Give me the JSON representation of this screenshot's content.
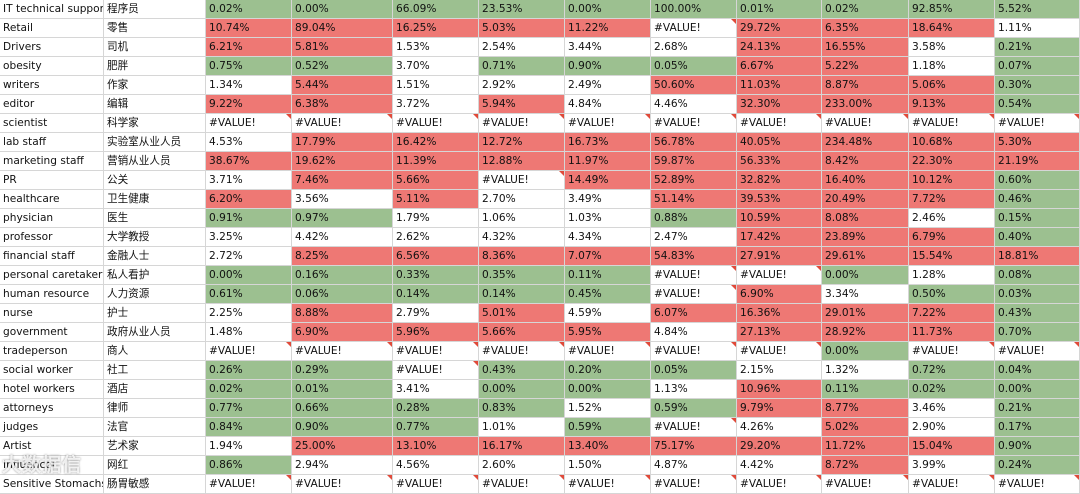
{
  "rows": [
    {
      "en": "IT technical support",
      "zh": "程序员",
      "cells": [
        {
          "v": "0.02%",
          "t": "g"
        },
        {
          "v": "0.00%",
          "t": "g"
        },
        {
          "v": "66.09%",
          "t": "g"
        },
        {
          "v": "23.53%",
          "t": "g"
        },
        {
          "v": "0.00%",
          "t": "g"
        },
        {
          "v": "100.00%",
          "t": "g"
        },
        {
          "v": "0.01%",
          "t": "g"
        },
        {
          "v": "0.02%",
          "t": "g"
        },
        {
          "v": "92.85%",
          "t": "g"
        },
        {
          "v": "5.52%",
          "t": "g"
        }
      ]
    },
    {
      "en": "Retail",
      "zh": "零售",
      "cells": [
        {
          "v": "10.74%",
          "t": "r"
        },
        {
          "v": "89.04%",
          "t": "r"
        },
        {
          "v": "16.25%",
          "t": "r"
        },
        {
          "v": "5.03%",
          "t": "r"
        },
        {
          "v": "11.22%",
          "t": "r"
        },
        {
          "v": "#VALUE!",
          "t": "w",
          "f": true
        },
        {
          "v": "29.72%",
          "t": "r"
        },
        {
          "v": "6.35%",
          "t": "r"
        },
        {
          "v": "18.64%",
          "t": "r"
        },
        {
          "v": "1.11%",
          "t": "w"
        }
      ]
    },
    {
      "en": "Drivers",
      "zh": "司机",
      "cells": [
        {
          "v": "6.21%",
          "t": "r"
        },
        {
          "v": "5.81%",
          "t": "r"
        },
        {
          "v": "1.53%",
          "t": "w"
        },
        {
          "v": "2.54%",
          "t": "w"
        },
        {
          "v": "3.44%",
          "t": "w"
        },
        {
          "v": "2.68%",
          "t": "w"
        },
        {
          "v": "24.13%",
          "t": "r"
        },
        {
          "v": "16.55%",
          "t": "r"
        },
        {
          "v": "3.58%",
          "t": "w"
        },
        {
          "v": "0.21%",
          "t": "g"
        }
      ]
    },
    {
      "en": "obesity",
      "zh": "肥胖",
      "cells": [
        {
          "v": "0.75%",
          "t": "g"
        },
        {
          "v": "0.52%",
          "t": "g"
        },
        {
          "v": "3.70%",
          "t": "w"
        },
        {
          "v": "0.71%",
          "t": "g"
        },
        {
          "v": "0.90%",
          "t": "g"
        },
        {
          "v": "0.05%",
          "t": "g"
        },
        {
          "v": "6.67%",
          "t": "r"
        },
        {
          "v": "5.22%",
          "t": "r"
        },
        {
          "v": "1.18%",
          "t": "w"
        },
        {
          "v": "0.07%",
          "t": "g"
        }
      ]
    },
    {
      "en": "writers",
      "zh": "作家",
      "cells": [
        {
          "v": "1.34%",
          "t": "w"
        },
        {
          "v": "5.44%",
          "t": "r"
        },
        {
          "v": "1.51%",
          "t": "w"
        },
        {
          "v": "2.92%",
          "t": "w"
        },
        {
          "v": "2.49%",
          "t": "w"
        },
        {
          "v": "50.60%",
          "t": "r"
        },
        {
          "v": "11.03%",
          "t": "r"
        },
        {
          "v": "8.87%",
          "t": "r"
        },
        {
          "v": "5.06%",
          "t": "r"
        },
        {
          "v": "0.30%",
          "t": "g"
        }
      ]
    },
    {
      "en": "editor",
      "zh": "编辑",
      "cells": [
        {
          "v": "9.22%",
          "t": "r"
        },
        {
          "v": "6.38%",
          "t": "r"
        },
        {
          "v": "3.72%",
          "t": "w"
        },
        {
          "v": "5.94%",
          "t": "r"
        },
        {
          "v": "4.84%",
          "t": "w"
        },
        {
          "v": "4.46%",
          "t": "w"
        },
        {
          "v": "32.30%",
          "t": "r"
        },
        {
          "v": "233.00%",
          "t": "r"
        },
        {
          "v": "9.13%",
          "t": "r"
        },
        {
          "v": "0.54%",
          "t": "g"
        }
      ]
    },
    {
      "en": "scientist",
      "zh": "科学家",
      "cells": [
        {
          "v": "#VALUE!",
          "t": "w",
          "f": true
        },
        {
          "v": "#VALUE!",
          "t": "w",
          "f": true
        },
        {
          "v": "#VALUE!",
          "t": "w",
          "f": true
        },
        {
          "v": "#VALUE!",
          "t": "w",
          "f": true
        },
        {
          "v": "#VALUE!",
          "t": "w",
          "f": true
        },
        {
          "v": "#VALUE!",
          "t": "w",
          "f": true
        },
        {
          "v": "#VALUE!",
          "t": "w",
          "f": true
        },
        {
          "v": "#VALUE!",
          "t": "w",
          "f": true
        },
        {
          "v": "#VALUE!",
          "t": "w",
          "f": true
        },
        {
          "v": "#VALUE!",
          "t": "w",
          "f": true
        }
      ]
    },
    {
      "en": "lab staff",
      "zh": "实验室从业人员",
      "cells": [
        {
          "v": "4.53%",
          "t": "w"
        },
        {
          "v": "17.79%",
          "t": "r"
        },
        {
          "v": "16.42%",
          "t": "r"
        },
        {
          "v": "12.72%",
          "t": "r"
        },
        {
          "v": "16.73%",
          "t": "r"
        },
        {
          "v": "56.78%",
          "t": "r"
        },
        {
          "v": "40.05%",
          "t": "r"
        },
        {
          "v": "234.48%",
          "t": "r"
        },
        {
          "v": "10.68%",
          "t": "r"
        },
        {
          "v": "5.30%",
          "t": "r"
        }
      ]
    },
    {
      "en": "marketing staff",
      "zh": "营销从业人员",
      "cells": [
        {
          "v": "38.67%",
          "t": "r"
        },
        {
          "v": "19.62%",
          "t": "r"
        },
        {
          "v": "11.39%",
          "t": "r"
        },
        {
          "v": "12.88%",
          "t": "r"
        },
        {
          "v": "11.97%",
          "t": "r"
        },
        {
          "v": "59.87%",
          "t": "r"
        },
        {
          "v": "56.33%",
          "t": "r"
        },
        {
          "v": "8.42%",
          "t": "r"
        },
        {
          "v": "22.30%",
          "t": "r"
        },
        {
          "v": "21.19%",
          "t": "r"
        }
      ]
    },
    {
      "en": "PR",
      "zh": "公关",
      "cells": [
        {
          "v": "3.71%",
          "t": "w"
        },
        {
          "v": "7.46%",
          "t": "r"
        },
        {
          "v": "5.66%",
          "t": "r"
        },
        {
          "v": "#VALUE!",
          "t": "w",
          "f": true
        },
        {
          "v": "14.49%",
          "t": "r"
        },
        {
          "v": "52.89%",
          "t": "r"
        },
        {
          "v": "32.82%",
          "t": "r"
        },
        {
          "v": "16.40%",
          "t": "r"
        },
        {
          "v": "10.12%",
          "t": "r"
        },
        {
          "v": "0.60%",
          "t": "g"
        }
      ]
    },
    {
      "en": "healthcare",
      "zh": "卫生健康",
      "cells": [
        {
          "v": "6.20%",
          "t": "r"
        },
        {
          "v": "3.56%",
          "t": "w"
        },
        {
          "v": "5.11%",
          "t": "r"
        },
        {
          "v": "2.70%",
          "t": "w"
        },
        {
          "v": "3.49%",
          "t": "w"
        },
        {
          "v": "51.14%",
          "t": "r"
        },
        {
          "v": "39.53%",
          "t": "r"
        },
        {
          "v": "20.49%",
          "t": "r"
        },
        {
          "v": "7.72%",
          "t": "r"
        },
        {
          "v": "0.46%",
          "t": "g"
        }
      ]
    },
    {
      "en": "physician",
      "zh": "医生",
      "cells": [
        {
          "v": "0.91%",
          "t": "g"
        },
        {
          "v": "0.97%",
          "t": "g"
        },
        {
          "v": "1.79%",
          "t": "w"
        },
        {
          "v": "1.06%",
          "t": "w"
        },
        {
          "v": "1.03%",
          "t": "w"
        },
        {
          "v": "0.88%",
          "t": "g"
        },
        {
          "v": "10.59%",
          "t": "r"
        },
        {
          "v": "8.08%",
          "t": "r"
        },
        {
          "v": "2.46%",
          "t": "w"
        },
        {
          "v": "0.15%",
          "t": "g"
        }
      ]
    },
    {
      "en": "professor",
      "zh": "大学教授",
      "cells": [
        {
          "v": "3.25%",
          "t": "w"
        },
        {
          "v": "4.42%",
          "t": "w"
        },
        {
          "v": "2.62%",
          "t": "w"
        },
        {
          "v": "4.32%",
          "t": "w"
        },
        {
          "v": "4.34%",
          "t": "w"
        },
        {
          "v": "2.47%",
          "t": "w"
        },
        {
          "v": "17.42%",
          "t": "r"
        },
        {
          "v": "23.89%",
          "t": "r"
        },
        {
          "v": "6.79%",
          "t": "r"
        },
        {
          "v": "0.40%",
          "t": "g"
        }
      ]
    },
    {
      "en": "financial staff",
      "zh": "金融人士",
      "cells": [
        {
          "v": "2.72%",
          "t": "w"
        },
        {
          "v": "8.25%",
          "t": "r"
        },
        {
          "v": "6.56%",
          "t": "r"
        },
        {
          "v": "8.36%",
          "t": "r"
        },
        {
          "v": "7.07%",
          "t": "r"
        },
        {
          "v": "54.83%",
          "t": "r"
        },
        {
          "v": "27.91%",
          "t": "r"
        },
        {
          "v": "29.61%",
          "t": "r"
        },
        {
          "v": "15.54%",
          "t": "r"
        },
        {
          "v": "18.81%",
          "t": "r"
        }
      ]
    },
    {
      "en": "personal caretaker",
      "zh": "私人看护",
      "cells": [
        {
          "v": "0.00%",
          "t": "g"
        },
        {
          "v": "0.16%",
          "t": "g"
        },
        {
          "v": "0.33%",
          "t": "g"
        },
        {
          "v": "0.35%",
          "t": "g"
        },
        {
          "v": "0.11%",
          "t": "g"
        },
        {
          "v": "#VALUE!",
          "t": "w",
          "f": true
        },
        {
          "v": "#VALUE!",
          "t": "w",
          "f": true
        },
        {
          "v": "0.00%",
          "t": "g"
        },
        {
          "v": "1.28%",
          "t": "w"
        },
        {
          "v": "0.08%",
          "t": "g"
        }
      ]
    },
    {
      "en": "human resource",
      "zh": "人力资源",
      "cells": [
        {
          "v": "0.61%",
          "t": "g"
        },
        {
          "v": "0.06%",
          "t": "g"
        },
        {
          "v": "0.14%",
          "t": "g"
        },
        {
          "v": "0.14%",
          "t": "g"
        },
        {
          "v": "0.45%",
          "t": "g"
        },
        {
          "v": "#VALUE!",
          "t": "w",
          "f": true
        },
        {
          "v": "6.90%",
          "t": "r"
        },
        {
          "v": "3.34%",
          "t": "w"
        },
        {
          "v": "0.50%",
          "t": "g"
        },
        {
          "v": "0.03%",
          "t": "g"
        }
      ]
    },
    {
      "en": "nurse",
      "zh": "护士",
      "cells": [
        {
          "v": "2.25%",
          "t": "w"
        },
        {
          "v": "8.88%",
          "t": "r"
        },
        {
          "v": "2.79%",
          "t": "w"
        },
        {
          "v": "5.01%",
          "t": "r"
        },
        {
          "v": "4.59%",
          "t": "w"
        },
        {
          "v": "6.07%",
          "t": "r"
        },
        {
          "v": "16.36%",
          "t": "r"
        },
        {
          "v": "29.01%",
          "t": "r"
        },
        {
          "v": "7.22%",
          "t": "r"
        },
        {
          "v": "0.43%",
          "t": "g"
        }
      ]
    },
    {
      "en": "government",
      "zh": "政府从业人员",
      "cells": [
        {
          "v": "1.48%",
          "t": "w"
        },
        {
          "v": "6.90%",
          "t": "r"
        },
        {
          "v": "5.96%",
          "t": "r"
        },
        {
          "v": "5.66%",
          "t": "r"
        },
        {
          "v": "5.95%",
          "t": "r"
        },
        {
          "v": "4.84%",
          "t": "w"
        },
        {
          "v": "27.13%",
          "t": "r"
        },
        {
          "v": "28.92%",
          "t": "r"
        },
        {
          "v": "11.73%",
          "t": "r"
        },
        {
          "v": "0.70%",
          "t": "g"
        }
      ]
    },
    {
      "en": "tradeperson",
      "zh": "商人",
      "cells": [
        {
          "v": "#VALUE!",
          "t": "w",
          "f": true
        },
        {
          "v": "#VALUE!",
          "t": "w",
          "f": true
        },
        {
          "v": "#VALUE!",
          "t": "w",
          "f": true
        },
        {
          "v": "#VALUE!",
          "t": "w",
          "f": true
        },
        {
          "v": "#VALUE!",
          "t": "w",
          "f": true
        },
        {
          "v": "#VALUE!",
          "t": "w",
          "f": true
        },
        {
          "v": "#VALUE!",
          "t": "w",
          "f": true
        },
        {
          "v": "0.00%",
          "t": "g"
        },
        {
          "v": "#VALUE!",
          "t": "w",
          "f": true
        },
        {
          "v": "#VALUE!",
          "t": "w",
          "f": true
        }
      ]
    },
    {
      "en": "social worker",
      "zh": "社工",
      "cells": [
        {
          "v": "0.26%",
          "t": "g"
        },
        {
          "v": "0.29%",
          "t": "g"
        },
        {
          "v": "#VALUE!",
          "t": "w",
          "f": true
        },
        {
          "v": "0.43%",
          "t": "g"
        },
        {
          "v": "0.20%",
          "t": "g"
        },
        {
          "v": "0.05%",
          "t": "g"
        },
        {
          "v": "2.15%",
          "t": "w"
        },
        {
          "v": "1.32%",
          "t": "w"
        },
        {
          "v": "0.72%",
          "t": "g"
        },
        {
          "v": "0.04%",
          "t": "g"
        }
      ]
    },
    {
      "en": "hotel workers",
      "zh": "酒店",
      "cells": [
        {
          "v": "0.02%",
          "t": "g"
        },
        {
          "v": "0.01%",
          "t": "g"
        },
        {
          "v": "3.41%",
          "t": "w"
        },
        {
          "v": "0.00%",
          "t": "g"
        },
        {
          "v": "0.00%",
          "t": "g"
        },
        {
          "v": "1.13%",
          "t": "w"
        },
        {
          "v": "10.96%",
          "t": "r"
        },
        {
          "v": "0.11%",
          "t": "g"
        },
        {
          "v": "0.02%",
          "t": "g"
        },
        {
          "v": "0.00%",
          "t": "g"
        }
      ]
    },
    {
      "en": "attorneys",
      "zh": "律师",
      "cells": [
        {
          "v": "0.77%",
          "t": "g"
        },
        {
          "v": "0.66%",
          "t": "g"
        },
        {
          "v": "0.28%",
          "t": "g"
        },
        {
          "v": "0.83%",
          "t": "g"
        },
        {
          "v": "1.52%",
          "t": "w"
        },
        {
          "v": "0.59%",
          "t": "g"
        },
        {
          "v": "9.79%",
          "t": "r"
        },
        {
          "v": "8.77%",
          "t": "r"
        },
        {
          "v": "3.46%",
          "t": "w"
        },
        {
          "v": "0.21%",
          "t": "g"
        }
      ]
    },
    {
      "en": "judges",
      "zh": "法官",
      "cells": [
        {
          "v": "0.84%",
          "t": "g"
        },
        {
          "v": "0.90%",
          "t": "g"
        },
        {
          "v": "0.77%",
          "t": "g"
        },
        {
          "v": "1.01%",
          "t": "w"
        },
        {
          "v": "0.59%",
          "t": "g"
        },
        {
          "v": "#VALUE!",
          "t": "w",
          "f": true
        },
        {
          "v": "4.26%",
          "t": "w"
        },
        {
          "v": "5.02%",
          "t": "r"
        },
        {
          "v": "2.90%",
          "t": "w"
        },
        {
          "v": "0.17%",
          "t": "g"
        }
      ]
    },
    {
      "en": "Artist",
      "zh": "艺术家",
      "cells": [
        {
          "v": "1.94%",
          "t": "w"
        },
        {
          "v": "25.00%",
          "t": "r"
        },
        {
          "v": "13.10%",
          "t": "r"
        },
        {
          "v": "16.17%",
          "t": "r"
        },
        {
          "v": "13.40%",
          "t": "r"
        },
        {
          "v": "75.17%",
          "t": "r"
        },
        {
          "v": "29.20%",
          "t": "r"
        },
        {
          "v": "11.72%",
          "t": "r"
        },
        {
          "v": "15.04%",
          "t": "r"
        },
        {
          "v": "0.90%",
          "t": "g"
        }
      ]
    },
    {
      "en": "Influencer",
      "zh": "网红",
      "cells": [
        {
          "v": "0.86%",
          "t": "g"
        },
        {
          "v": "2.94%",
          "t": "w"
        },
        {
          "v": "4.56%",
          "t": "w"
        },
        {
          "v": "2.60%",
          "t": "w"
        },
        {
          "v": "1.50%",
          "t": "w"
        },
        {
          "v": "4.87%",
          "t": "w"
        },
        {
          "v": "4.42%",
          "t": "w"
        },
        {
          "v": "8.72%",
          "t": "r"
        },
        {
          "v": "3.99%",
          "t": "w"
        },
        {
          "v": "0.24%",
          "t": "g"
        }
      ]
    },
    {
      "en": "Sensitive Stomachs",
      "zh": "肠胃敏感",
      "cells": [
        {
          "v": "#VALUE!",
          "t": "w",
          "f": true
        },
        {
          "v": "#VALUE!",
          "t": "w",
          "f": true
        },
        {
          "v": "#VALUE!",
          "t": "w",
          "f": true
        },
        {
          "v": "#VALUE!",
          "t": "w",
          "f": true
        },
        {
          "v": "#VALUE!",
          "t": "w",
          "f": true
        },
        {
          "v": "#VALUE!",
          "t": "w",
          "f": true
        },
        {
          "v": "#VALUE!",
          "t": "w",
          "f": true
        },
        {
          "v": "#VALUE!",
          "t": "w",
          "f": true
        },
        {
          "v": "#VALUE!",
          "t": "w",
          "f": true
        },
        {
          "v": "#VALUE!",
          "t": "w",
          "f": true
        }
      ]
    }
  ],
  "watermark": {
    "text": "大数据信"
  }
}
